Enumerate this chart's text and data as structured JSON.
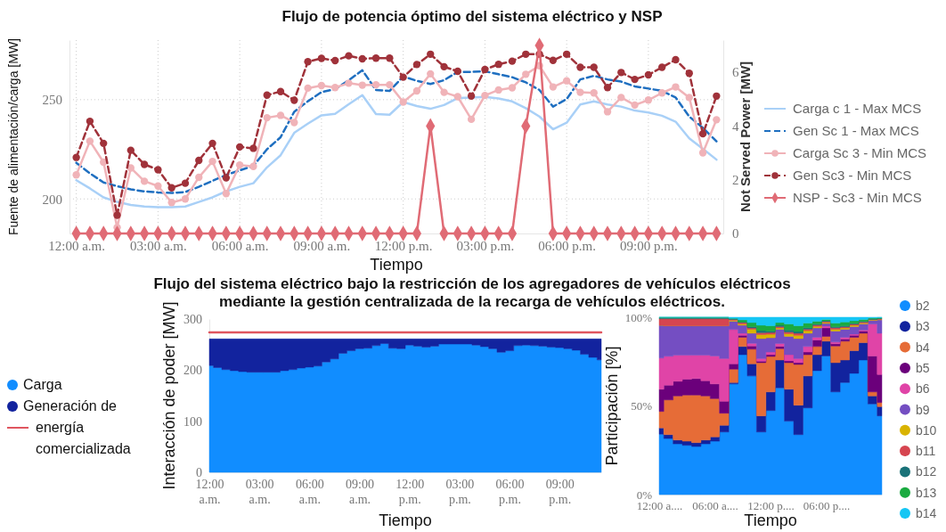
{
  "chart_data": [
    {
      "type": "line",
      "title": "Flujo de potencia óptimo del sistema eléctrico y NSP",
      "xlabel": "Tiempo",
      "ylabel": "Fuente de alimentación/carga [MW]",
      "y2label": "Not Served Power [MW]",
      "x": [
        0,
        0.5,
        1,
        1.5,
        2,
        2.5,
        3,
        3.5,
        4,
        4.5,
        5,
        5.5,
        6,
        6.5,
        7,
        7.5,
        8,
        8.5,
        9,
        9.5,
        10,
        10.5,
        11,
        11.5,
        12,
        12.5,
        13,
        13.5,
        14,
        14.5,
        15,
        15.5,
        16,
        16.5,
        17,
        17.5,
        18,
        18.5,
        19,
        19.5,
        20,
        20.5,
        21,
        21.5,
        22,
        22.5,
        23,
        23.5
      ],
      "xlim": [
        -0.25,
        23.75
      ],
      "xticks": [
        {
          "value": 0,
          "label": "12:00 a.m."
        },
        {
          "value": 3,
          "label": "03:00 a.m."
        },
        {
          "value": 6,
          "label": "06:00 a.m."
        },
        {
          "value": 9,
          "label": "09:00 a.m."
        },
        {
          "value": 12,
          "label": "12:00 p.m."
        },
        {
          "value": 15,
          "label": "03:00 p.m."
        },
        {
          "value": 18,
          "label": "06:00 p.m."
        },
        {
          "value": 21,
          "label": "09:00 p.m."
        }
      ],
      "ylim": [
        182.6,
        280
      ],
      "yticks": [
        200,
        250
      ],
      "y2lim": [
        0,
        7.2
      ],
      "y2ticks": [
        0,
        2,
        4,
        6
      ],
      "grid": true,
      "legend": "right",
      "series": [
        {
          "name": "Carga c 1 - Max MCS",
          "color": "#a9d0f7",
          "line_style": "solid",
          "marker": "none",
          "values": [
            209.4,
            205.3,
            200.8,
            198.5,
            197.0,
            196.2,
            195.8,
            195.8,
            196.2,
            198.5,
            200.8,
            203.8,
            206.1,
            207.9,
            215.9,
            222.0,
            233.3,
            237.9,
            242.1,
            242.9,
            247.7,
            252.3,
            242.7,
            242.4,
            248.8,
            246.8,
            245.4,
            247.3,
            250.8,
            251.1,
            251.4,
            250.6,
            249.1,
            245.7,
            241.5,
            235.1,
            238.4,
            247.6,
            249.1,
            247.6,
            246.5,
            244.5,
            243.5,
            241.9,
            238.9,
            230.5,
            225.2,
            219.8
          ]
        },
        {
          "name": "Gen Sc 1 - Max MCS",
          "color": "#1f6fc0",
          "line_style": "dashed",
          "marker": "none",
          "values": [
            218.2,
            212.9,
            208.3,
            206.4,
            204.8,
            203.8,
            203.3,
            203.0,
            203.5,
            206.1,
            209.1,
            212.1,
            214.4,
            216.7,
            225.0,
            231.1,
            243.9,
            249.2,
            253.8,
            255.3,
            259.8,
            264.8,
            254.9,
            254.4,
            261.7,
            259.5,
            257.9,
            259.8,
            264.0,
            264.0,
            264.3,
            262.8,
            261.3,
            258.7,
            254.9,
            246.5,
            250.3,
            260.2,
            262.0,
            260.2,
            259.1,
            256.7,
            255.6,
            254.4,
            251.1,
            241.5,
            235.8,
            229.0
          ]
        },
        {
          "name": "Carga Sc 3 - Min MCS",
          "color": "#f0b3b8",
          "line_style": "solid",
          "marker": "circle",
          "values": [
            212.1,
            229.1,
            218.5,
            185.6,
            215.6,
            208.9,
            206.5,
            198.2,
            200.0,
            210.9,
            218.9,
            202.7,
            217.1,
            216.4,
            240.9,
            242.1,
            238.5,
            255.8,
            257.1,
            256.1,
            258.3,
            257.3,
            257.5,
            257.5,
            248.8,
            254.4,
            263.0,
            253.7,
            251.5,
            240.1,
            252.1,
            254.9,
            256.0,
            262.8,
            267.1,
            256.4,
            259.5,
            253.7,
            253.4,
            243.9,
            251.1,
            247.3,
            249.8,
            253.4,
            256.4,
            251.1,
            223.2,
            239.9
          ]
        },
        {
          "name": "Gen Sc3 - Min MCS",
          "color": "#a0323a",
          "line_style": "dashed",
          "marker": "circle",
          "values": [
            220.9,
            239.1,
            228.0,
            191.8,
            224.5,
            217.4,
            214.7,
            205.6,
            207.9,
            219.4,
            228.0,
            210.6,
            226.2,
            225.5,
            252.3,
            254.1,
            249.7,
            269.1,
            270.8,
            269.7,
            272.1,
            270.6,
            270.9,
            270.9,
            261.3,
            267.7,
            272.9,
            266.6,
            264.3,
            251.8,
            265.2,
            267.8,
            269.4,
            272.9,
            272.9,
            269.8,
            272.9,
            266.3,
            266.3,
            256.1,
            263.7,
            260.2,
            262.5,
            266.3,
            270.1,
            263.3,
            232.8,
            251.8
          ]
        },
        {
          "name": "NSP - Sc3 - Min MCS",
          "color": "#e06b75",
          "axis": "y2",
          "line_style": "solid",
          "marker": "diamond",
          "values": [
            0,
            0,
            0,
            0,
            0,
            0,
            0,
            0,
            0,
            0,
            0,
            0,
            0,
            0,
            0,
            0,
            0,
            0,
            0,
            0,
            0,
            0,
            0,
            0,
            0,
            0,
            4,
            0,
            0,
            0,
            0,
            0,
            0,
            4,
            7,
            0,
            0,
            0,
            0,
            0,
            0,
            0,
            0,
            0,
            0,
            0,
            0,
            0
          ]
        }
      ]
    },
    {
      "type": "area",
      "title": "Flujo del sistema eléctrico bajo la restricción de los agregadores de vehículos eléctricos mediante la gestión centralizada de la recarga de vehículos eléctricos.",
      "xlabel": "Tiempo",
      "ylabel": "Interacción de poder [MW]",
      "x": [
        0,
        0.5,
        1,
        1.5,
        2,
        2.5,
        3,
        3.5,
        4,
        4.5,
        5,
        5.5,
        6,
        6.5,
        7,
        7.5,
        8,
        8.5,
        9,
        9.5,
        10,
        10.5,
        11,
        11.5,
        12,
        12.5,
        13,
        13.5,
        14,
        14.5,
        15,
        15.5,
        16,
        16.5,
        17,
        17.5,
        18,
        18.5,
        19,
        19.5,
        20,
        20.5,
        21,
        21.5,
        22,
        22.5,
        23,
        23.5
      ],
      "xlim": [
        0,
        23.5
      ],
      "xticks": [
        {
          "value": 0,
          "label": "12:00 a.m."
        },
        {
          "value": 3,
          "label": "03:00 a.m."
        },
        {
          "value": 6,
          "label": "06:00 a.m."
        },
        {
          "value": 9,
          "label": "09:00 a.m."
        },
        {
          "value": 12,
          "label": "12:00 p.m."
        },
        {
          "value": 15,
          "label": "03:00 p.m."
        },
        {
          "value": 18,
          "label": "06:00 p.m."
        },
        {
          "value": 21,
          "label": "09:00 p.m."
        }
      ],
      "ylim": [
        0,
        300
      ],
      "yticks": [
        0,
        100,
        200,
        300
      ],
      "legend": "left",
      "stacked": true,
      "series": [
        {
          "name": "Carga",
          "color": "#118dff",
          "values": [
            209,
            205,
            201,
            199,
            197,
            196,
            196,
            196,
            196,
            199,
            201,
            204,
            206,
            208,
            216,
            222,
            233,
            238,
            242,
            243,
            248,
            252,
            243,
            242,
            249,
            247,
            245,
            247,
            251,
            251,
            251,
            251,
            249,
            246,
            242,
            235,
            238,
            248,
            249,
            248,
            247,
            245,
            244,
            242,
            239,
            231,
            225,
            220
          ]
        },
        {
          "name": "Generación de",
          "color": "#12239e",
          "values": [
            52,
            56,
            60,
            62,
            64,
            65,
            65,
            65,
            65,
            62,
            60,
            57,
            55,
            53,
            45,
            39,
            28,
            23,
            19,
            18,
            13,
            9,
            18,
            19,
            12,
            14,
            16,
            14,
            10,
            10,
            10,
            10,
            12,
            15,
            19,
            26,
            23,
            13,
            12,
            13,
            14,
            16,
            17,
            19,
            22,
            30,
            36,
            41
          ]
        },
        {
          "name": "energía comercializada",
          "color": "#e0565f",
          "type": "line",
          "values": [
            274,
            274,
            274,
            274,
            274,
            274,
            274,
            274,
            274,
            274,
            274,
            274,
            274,
            274,
            274,
            274,
            274,
            274,
            274,
            274,
            274,
            274,
            274,
            274,
            274,
            274,
            274,
            274,
            274,
            274,
            274,
            274,
            274,
            274,
            274,
            274,
            274,
            274,
            274,
            274,
            274,
            274,
            274,
            274,
            274,
            274,
            274,
            274
          ]
        }
      ]
    },
    {
      "type": "area",
      "xlabel": "Tiempo",
      "ylabel": "Participación [%]",
      "categories": [
        "12:00 a....",
        null,
        null,
        null,
        null,
        null,
        "06:00 a....",
        null,
        null,
        null,
        null,
        null,
        "12:00 p....",
        null,
        null,
        null,
        null,
        null,
        "06:00 p....",
        null,
        null,
        null,
        null,
        null,
        null
      ],
      "ylim": [
        0,
        100
      ],
      "yticks": [
        {
          "value": 0,
          "label": "0%"
        },
        {
          "value": 50,
          "label": "50%"
        },
        {
          "value": 100,
          "label": "100%"
        }
      ],
      "legend": "right",
      "stacked": true,
      "series": [
        {
          "name": "b2",
          "color": "#118dff",
          "values": [
            34.1,
            31.6,
            28.6,
            27.8,
            27.1,
            28.6,
            30.1,
            35.3,
            62.4,
            78.9,
            66.9,
            35.3,
            47.4,
            60.2,
            41.4,
            33.8,
            48.9,
            69.9,
            78.2,
            57.9,
            63.2,
            68.4,
            75.9,
            51.1,
            44.4
          ]
        },
        {
          "name": "b3",
          "color": "#12239e",
          "values": [
            3.5,
            2.2,
            2.2,
            2.3,
            2.2,
            2.2,
            2.5,
            3.8,
            0.8,
            4.6,
            6.8,
            9.1,
            10.5,
            15.7,
            18.0,
            16.6,
            18.0,
            9.0,
            8.3,
            16.5,
            12.7,
            12.8,
            9.8,
            4.5,
            5.2
          ]
        },
        {
          "name": "b4",
          "color": "#e66c37",
          "values": [
            9.3,
            19.6,
            24.8,
            26.0,
            26.8,
            24.8,
            21.5,
            6.8,
            7.5,
            5.2,
            8.3,
            30.0,
            20.0,
            6.4,
            15.0,
            23.0,
            12.0,
            4.6,
            2.7,
            9.4,
            10.6,
            7.5,
            5.3,
            2.3,
            2.3
          ]
        },
        {
          "name": "b5",
          "color": "#6b007b",
          "values": [
            12.5,
            8.3,
            8.3,
            9.0,
            9.3,
            8.6,
            8.3,
            6.7,
            3.0,
            1.1,
            1.8,
            0.8,
            1.0,
            1.3,
            1.0,
            1.0,
            1.5,
            3.7,
            4.8,
            1.2,
            1.2,
            1.1,
            1.2,
            20.3,
            15.8
          ]
        },
        {
          "name": "b6",
          "color": "#e044a7",
          "values": [
            17.6,
            16.3,
            14.7,
            13.5,
            13.2,
            14.4,
            15.8,
            24.1,
            19.4,
            1.2,
            1.5,
            1.5,
            1.5,
            1.6,
            3.5,
            2.3,
            3.1,
            1.5,
            1.0,
            1.0,
            1.0,
            0.7,
            0.6,
            18.0,
            23.3
          ]
        },
        {
          "name": "b9",
          "color": "#744ec2",
          "values": [
            18.5,
            17.2,
            16.6,
            16.6,
            16.6,
            16.6,
            17.0,
            18.5,
            4.6,
            4.5,
            5.7,
            11.3,
            8.0,
            8.0,
            10.3,
            11.3,
            7.5,
            5.3,
            1.5,
            6.2,
            4.5,
            4.2,
            3.4,
            2.0,
            7.5
          ]
        },
        {
          "name": "b10",
          "color": "#d9b300",
          "values": [
            0,
            0,
            0,
            0,
            0,
            0,
            0,
            0,
            0.5,
            0.7,
            2.2,
            2.2,
            2.0,
            0.8,
            1.5,
            1.8,
            1.5,
            0.8,
            0.6,
            1.0,
            0.8,
            0.8,
            0.5,
            0.3,
            0.3
          ]
        },
        {
          "name": "b11",
          "color": "#d64550",
          "values": [
            3.7,
            4.0,
            4.0,
            4.0,
            4.0,
            4.0,
            4.0,
            4.0,
            0.6,
            0.8,
            0.8,
            1.1,
            1.0,
            0.7,
            1.0,
            1.2,
            0.8,
            0.8,
            0.5,
            0.9,
            0.6,
            0.6,
            0.6,
            0.3,
            0.3
          ]
        },
        {
          "name": "b12",
          "color": "#197278",
          "values": [
            0.5,
            0.5,
            0.5,
            0.5,
            0.5,
            0.5,
            0.5,
            0.5,
            0.3,
            0.3,
            0.7,
            1.2,
            0.8,
            0.8,
            1.1,
            1.0,
            0.8,
            0.6,
            0.4,
            0.6,
            0.6,
            0.5,
            0.4,
            0.3,
            0.3
          ]
        },
        {
          "name": "b13",
          "color": "#1aab40",
          "values": [
            0.3,
            0.3,
            0.3,
            0.3,
            0.3,
            0.3,
            0.3,
            0.3,
            0.3,
            1.2,
            2.3,
            3.0,
            3.0,
            1.5,
            3.4,
            3.2,
            2.6,
            1.5,
            0.8,
            2.0,
            2.1,
            1.4,
            1.1,
            0.5,
            0.4
          ]
        },
        {
          "name": "b14",
          "color": "#15c6f4",
          "values": [
            0,
            0,
            0,
            0,
            0,
            0,
            0,
            0,
            0.6,
            1.5,
            3.0,
            4.5,
            4.8,
            3.0,
            3.8,
            4.8,
            3.3,
            2.3,
            1.2,
            3.3,
            2.7,
            2.0,
            1.2,
            0.4,
            0.2
          ]
        }
      ]
    }
  ]
}
